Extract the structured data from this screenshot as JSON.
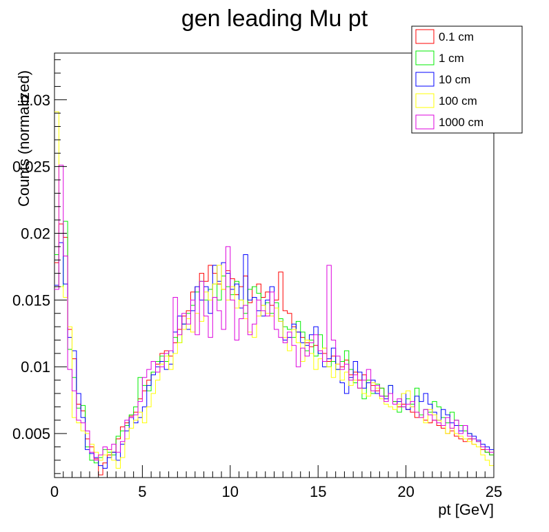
{
  "chart_data": {
    "type": "histogram-step",
    "title": "gen leading Mu pt",
    "xlabel": "pt [GeV]",
    "ylabel": "Counts (normalized)",
    "xlim": [
      0,
      25
    ],
    "ylim": [
      0.0017,
      0.0335
    ],
    "x_ticks": [
      0,
      5,
      10,
      15,
      20,
      25
    ],
    "x_tick_labels": [
      "0",
      "5",
      "10",
      "15",
      "20",
      "25"
    ],
    "y_ticks": [
      0.005,
      0.01,
      0.015,
      0.02,
      0.025,
      0.03
    ],
    "y_tick_labels": [
      "0.005",
      "0.01",
      "0.015",
      "0.02",
      "0.025",
      "0.03"
    ],
    "bin_width": 0.25,
    "grid": false,
    "legend_position": "top-right",
    "series": [
      {
        "name": "0.1 cm",
        "color": "#ff0000",
        "values": [
          0.0178,
          0.0207,
          0.0197,
          0.0128,
          0.0106,
          0.0072,
          0.0067,
          0.0046,
          0.004,
          0.0031,
          0.0019,
          0.0028,
          0.0034,
          0.0036,
          0.0046,
          0.0055,
          0.0058,
          0.0063,
          0.0066,
          0.0076,
          0.0082,
          0.009,
          0.0096,
          0.0102,
          0.011,
          0.0112,
          0.0108,
          0.0118,
          0.0128,
          0.0138,
          0.0142,
          0.0156,
          0.016,
          0.017,
          0.0164,
          0.0176,
          0.017,
          0.0162,
          0.0158,
          0.0172,
          0.0166,
          0.0154,
          0.016,
          0.0168,
          0.0148,
          0.016,
          0.0162,
          0.0152,
          0.0156,
          0.0146,
          0.015,
          0.0171,
          0.0142,
          0.014,
          0.013,
          0.0126,
          0.0122,
          0.0118,
          0.0115,
          0.0116,
          0.0112,
          0.011,
          0.0104,
          0.0108,
          0.0102,
          0.01,
          0.0105,
          0.0094,
          0.0096,
          0.009,
          0.0094,
          0.0088,
          0.0086,
          0.0082,
          0.0084,
          0.0078,
          0.008,
          0.0074,
          0.007,
          0.0072,
          0.0068,
          0.0066,
          0.0062,
          0.0064,
          0.006,
          0.0058,
          0.006,
          0.0056,
          0.0054,
          0.005,
          0.0052,
          0.0048,
          0.0046,
          0.0044,
          0.0046,
          0.0042,
          0.004,
          0.0038,
          0.0036,
          0.0034
        ]
      },
      {
        "name": "1 cm",
        "color": "#00ee00",
        "values": [
          0.0184,
          0.016,
          0.0209,
          0.0113,
          0.0092,
          0.0069,
          0.0071,
          0.004,
          0.003,
          0.0028,
          0.0032,
          0.0038,
          0.0036,
          0.0034,
          0.0048,
          0.0052,
          0.0056,
          0.0064,
          0.007,
          0.0092,
          0.0086,
          0.0082,
          0.0096,
          0.0104,
          0.0108,
          0.0104,
          0.0112,
          0.0122,
          0.0118,
          0.0132,
          0.014,
          0.0146,
          0.0156,
          0.0164,
          0.015,
          0.0158,
          0.0162,
          0.015,
          0.0168,
          0.016,
          0.0154,
          0.0164,
          0.015,
          0.014,
          0.0158,
          0.016,
          0.0155,
          0.0146,
          0.0148,
          0.014,
          0.0148,
          0.0136,
          0.013,
          0.0128,
          0.0122,
          0.0134,
          0.0126,
          0.0112,
          0.012,
          0.0108,
          0.0124,
          0.0114,
          0.01,
          0.0104,
          0.0098,
          0.0104,
          0.0112,
          0.0098,
          0.0088,
          0.0084,
          0.0076,
          0.009,
          0.008,
          0.0087,
          0.0084,
          0.0078,
          0.0086,
          0.0074,
          0.0066,
          0.007,
          0.0076,
          0.0072,
          0.0084,
          0.0064,
          0.0068,
          0.0066,
          0.0074,
          0.007,
          0.0062,
          0.0058,
          0.0066,
          0.006,
          0.0056,
          0.0052,
          0.005,
          0.0046,
          0.0044,
          0.004,
          0.0036,
          0.0034
        ]
      },
      {
        "name": "10 cm",
        "color": "#0000ff",
        "values": [
          0.0161,
          0.0193,
          0.0162,
          0.0122,
          0.0112,
          0.008,
          0.0062,
          0.0038,
          0.0035,
          0.0032,
          0.0026,
          0.0024,
          0.0032,
          0.0036,
          0.003,
          0.0042,
          0.0052,
          0.0062,
          0.0058,
          0.0062,
          0.007,
          0.0086,
          0.0094,
          0.01,
          0.0104,
          0.0098,
          0.0102,
          0.0126,
          0.0138,
          0.0132,
          0.0128,
          0.0142,
          0.016,
          0.015,
          0.016,
          0.014,
          0.0176,
          0.0164,
          0.0178,
          0.017,
          0.0158,
          0.0162,
          0.0144,
          0.0184,
          0.015,
          0.0152,
          0.0142,
          0.0138,
          0.015,
          0.016,
          0.0144,
          0.0134,
          0.012,
          0.0122,
          0.0132,
          0.0126,
          0.0118,
          0.0116,
          0.0124,
          0.013,
          0.011,
          0.01,
          0.0106,
          0.0114,
          0.0098,
          0.0088,
          0.008,
          0.0092,
          0.0104,
          0.0096,
          0.0084,
          0.0088,
          0.009,
          0.008,
          0.0078,
          0.0076,
          0.0086,
          0.0072,
          0.0074,
          0.008,
          0.0068,
          0.007,
          0.0078,
          0.0074,
          0.008,
          0.0072,
          0.0066,
          0.006,
          0.0068,
          0.0064,
          0.0058,
          0.0056,
          0.0052,
          0.0056,
          0.005,
          0.0048,
          0.0045,
          0.0042,
          0.004,
          0.0038
        ]
      },
      {
        "name": "100 cm",
        "color": "#ffff00",
        "values": [
          0.0291,
          0.016,
          0.0152,
          0.013,
          0.0062,
          0.0058,
          0.0052,
          0.005,
          0.0042,
          0.0036,
          0.003,
          0.0034,
          0.0038,
          0.003,
          0.0024,
          0.0032,
          0.0046,
          0.0054,
          0.006,
          0.0066,
          0.0058,
          0.007,
          0.008,
          0.009,
          0.0102,
          0.0108,
          0.0098,
          0.011,
          0.0118,
          0.0128,
          0.0136,
          0.0126,
          0.014,
          0.0134,
          0.0156,
          0.015,
          0.0162,
          0.0176,
          0.0158,
          0.015,
          0.016,
          0.0144,
          0.015,
          0.0136,
          0.0126,
          0.0122,
          0.0138,
          0.0146,
          0.014,
          0.0138,
          0.0144,
          0.0134,
          0.0122,
          0.0112,
          0.0128,
          0.0118,
          0.0104,
          0.012,
          0.011,
          0.0098,
          0.0106,
          0.0114,
          0.01,
          0.0092,
          0.0102,
          0.009,
          0.0096,
          0.0086,
          0.009,
          0.0084,
          0.008,
          0.0078,
          0.0088,
          0.0084,
          0.0076,
          0.0072,
          0.007,
          0.0068,
          0.0072,
          0.008,
          0.0082,
          0.007,
          0.0066,
          0.0062,
          0.0058,
          0.0068,
          0.0064,
          0.006,
          0.0056,
          0.005,
          0.0054,
          0.005,
          0.0048,
          0.0046,
          0.0044,
          0.0042,
          0.004,
          0.0034,
          0.003,
          0.0026
        ]
      },
      {
        "name": "1000 cm",
        "color": "#dd00dd",
        "values": [
          0.0158,
          0.0251,
          0.0183,
          0.0098,
          0.0082,
          0.006,
          0.0058,
          0.0052,
          0.0036,
          0.003,
          0.0034,
          0.004,
          0.0038,
          0.0042,
          0.0036,
          0.0044,
          0.006,
          0.0062,
          0.0064,
          0.0074,
          0.0092,
          0.0098,
          0.0104,
          0.0096,
          0.01,
          0.011,
          0.0112,
          0.0152,
          0.0124,
          0.014,
          0.0132,
          0.015,
          0.0124,
          0.0164,
          0.0138,
          0.0122,
          0.0152,
          0.0142,
          0.0128,
          0.019,
          0.015,
          0.012,
          0.0136,
          0.0146,
          0.0124,
          0.0132,
          0.015,
          0.0142,
          0.0138,
          0.0156,
          0.0128,
          0.0122,
          0.0118,
          0.0126,
          0.0116,
          0.01,
          0.0114,
          0.0108,
          0.0118,
          0.0124,
          0.0112,
          0.0104,
          0.0176,
          0.012,
          0.0108,
          0.0098,
          0.0102,
          0.009,
          0.0094,
          0.0084,
          0.009,
          0.0098,
          0.0082,
          0.0086,
          0.0078,
          0.0074,
          0.008,
          0.0072,
          0.0076,
          0.007,
          0.0072,
          0.0074,
          0.0066,
          0.0062,
          0.0068,
          0.0064,
          0.006,
          0.0058,
          0.0056,
          0.0062,
          0.0054,
          0.006,
          0.005,
          0.0056,
          0.0048,
          0.0046,
          0.0044,
          0.004,
          0.0038,
          0.0036
        ]
      }
    ]
  }
}
